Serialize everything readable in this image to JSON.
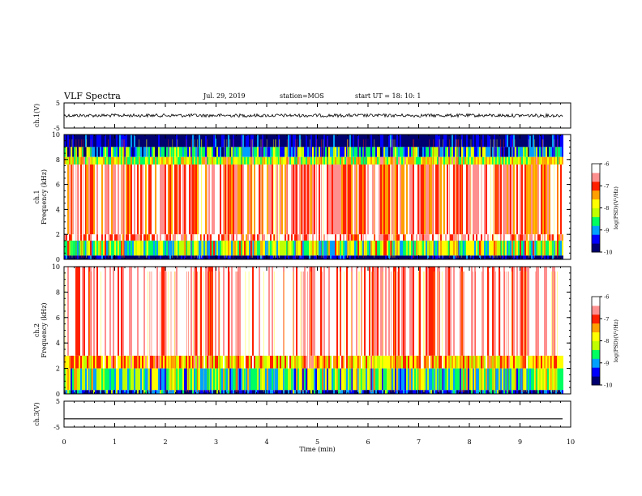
{
  "header": {
    "title": "VLF Spectra",
    "date": "Jul. 29, 2019",
    "station": "station=MOS",
    "start": "start UT =  18: 10: 1"
  },
  "chart_data": [
    {
      "type": "line",
      "panel": "ch.1 time series",
      "ylabel": "ch.1(V)",
      "ylim": [
        -5,
        5
      ],
      "yticks": [
        "5",
        "-5"
      ],
      "trace_level": 0,
      "color": "#000000"
    },
    {
      "type": "heatmap",
      "panel": "ch.1 spectrogram",
      "ylabel": "ch.1\nFrequency (kHz)",
      "ylim": [
        0,
        10
      ],
      "yticks": [
        "0",
        "2",
        "4",
        "6",
        "8",
        "10"
      ],
      "colorbar": {
        "label": "log(PSD)(V²/Hz)",
        "range": [
          -10,
          -6
        ],
        "ticks": [
          "-6",
          "-7",
          "-8",
          "-9",
          "-10"
        ],
        "colors": [
          "#000070",
          "#0000ff",
          "#00a0ff",
          "#00ff60",
          "#c0ff00",
          "#ffff00",
          "#ffa000",
          "#ff2000",
          "#ff9090",
          "#ffffff"
        ]
      },
      "bands": [
        {
          "f_low": 9.0,
          "f_high": 10.0,
          "level": -10
        },
        {
          "f_low": 8.2,
          "f_high": 9.0,
          "level": -9
        },
        {
          "f_low": 7.6,
          "f_high": 8.2,
          "level": -8
        },
        {
          "f_low": 2.0,
          "f_high": 7.6,
          "level": -6.7
        },
        {
          "f_low": 1.5,
          "f_high": 2.0,
          "level": -6.5
        },
        {
          "f_low": 0.3,
          "f_high": 1.5,
          "level": -8.3
        },
        {
          "f_low": 0.0,
          "f_high": 0.3,
          "level": -10
        }
      ]
    },
    {
      "type": "heatmap",
      "panel": "ch.2 spectrogram",
      "ylabel": "ch.2\nFrequency (kHz)",
      "ylim": [
        0,
        10
      ],
      "yticks": [
        "0",
        "2",
        "4",
        "6",
        "8",
        "10"
      ],
      "colorbar": {
        "label": "log(PSD)(V²/Hz)",
        "range": [
          -10,
          -6
        ],
        "ticks": [
          "-6",
          "-7",
          "-8",
          "-9",
          "-10"
        ],
        "colors": [
          "#000070",
          "#0000ff",
          "#00a0ff",
          "#00ff60",
          "#c0ff00",
          "#ffff00",
          "#ffa000",
          "#ff2000",
          "#ff9090",
          "#ffffff"
        ]
      },
      "bands": [
        {
          "f_low": 3.0,
          "f_high": 10.0,
          "level": -6.2
        },
        {
          "f_low": 2.0,
          "f_high": 3.0,
          "level": -7.5
        },
        {
          "f_low": 0.3,
          "f_high": 2.0,
          "level": -8.5
        },
        {
          "f_low": 0.0,
          "f_high": 0.3,
          "level": -9.5
        }
      ]
    },
    {
      "type": "line",
      "panel": "ch.3 time series",
      "ylabel": "ch.3(V)",
      "ylim": [
        -5,
        5
      ],
      "yticks": [
        "5",
        "-5"
      ],
      "trace_level": -1.8,
      "color": "#000000"
    }
  ],
  "xaxis": {
    "label": "Time (min)",
    "range": [
      0,
      10
    ],
    "ticks": [
      "0",
      "1",
      "2",
      "3",
      "4",
      "5",
      "6",
      "7",
      "8",
      "9",
      "10"
    ],
    "data_end": 9.85
  }
}
